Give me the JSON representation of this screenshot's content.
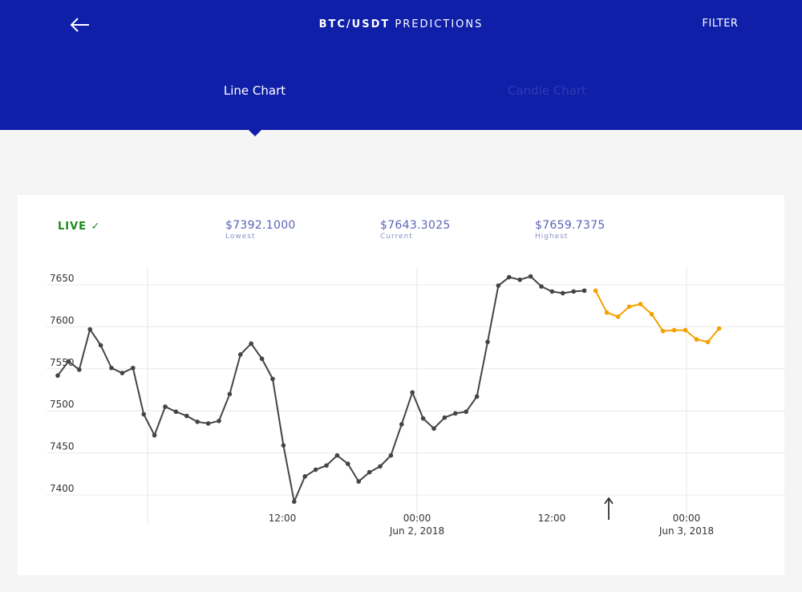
{
  "header": {
    "title_pair": "BTC/USDT",
    "title_rest": "PREDICTIONS",
    "filter_label": "FILTER",
    "tabs": [
      {
        "label": "Line Chart",
        "active": true
      },
      {
        "label": "Candle Chart",
        "active": false
      }
    ]
  },
  "colors": {
    "header": "#0f1fa8",
    "actual_line": "#444444",
    "predicted_line": "#f5a100",
    "live": "#1a8a1a"
  },
  "stats": {
    "live_label": "LIVE ✓",
    "lowest_value": "$7392.1000",
    "lowest_label": "Lowest",
    "current_value": "$7643.3025",
    "current_label": "Current",
    "highest_value": "$7659.7375",
    "highest_label": "Highest"
  },
  "chart_data": {
    "type": "line",
    "ylim": [
      7390,
      7670
    ],
    "y_ticks": [
      7400,
      7450,
      7500,
      7550,
      7600,
      7650
    ],
    "x_tick_labels": [
      {
        "label": "12:00",
        "sub": ""
      },
      {
        "label": "00:00",
        "sub": "Jun 2, 2018"
      },
      {
        "label": "12:00",
        "sub": ""
      },
      {
        "label": "00:00",
        "sub": "Jun 3, 2018"
      }
    ],
    "series": [
      {
        "role": "actual",
        "values": [
          7542,
          7559,
          7549,
          7597,
          7578,
          7551,
          7545,
          7551,
          7496,
          7471,
          7505,
          7499,
          7494,
          7487,
          7485,
          7488,
          7520,
          7567,
          7580,
          7562,
          7538,
          7459,
          7392,
          7422,
          7430,
          7435,
          7447,
          7437,
          7416,
          7427,
          7434,
          7447,
          7484,
          7522,
          7491,
          7479,
          7492,
          7497,
          7499,
          7517,
          7582,
          7649,
          7659,
          7656,
          7660,
          7648,
          7642,
          7640,
          7642,
          7643
        ]
      },
      {
        "role": "predicted",
        "values": [
          7643,
          7617,
          7612,
          7624,
          7627,
          7615,
          7595,
          7596,
          7596,
          7585,
          7582,
          7598
        ]
      }
    ]
  }
}
